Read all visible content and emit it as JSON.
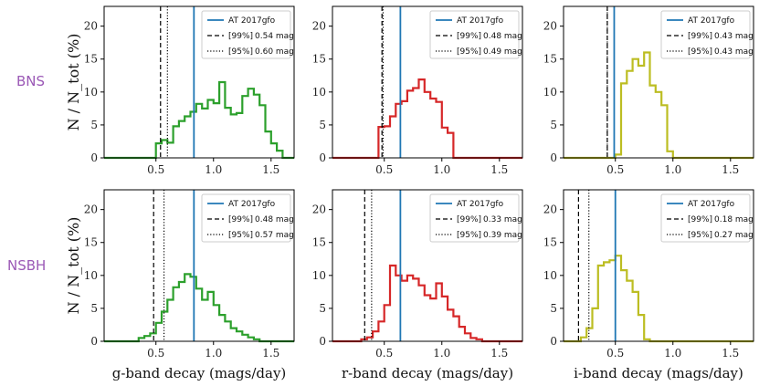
{
  "chart_data": {
    "type": "histogram-grid",
    "row_labels": [
      "BNS",
      "NSBH"
    ],
    "ylabel": "N / N_tot (%)",
    "xlabels": [
      "g-band decay (mags/day)",
      "r-band decay (mags/day)",
      "i-band decay (mags/day)"
    ],
    "xlim": [
      0.05,
      1.7
    ],
    "ylim": [
      0,
      23
    ],
    "xticks": [
      0.5,
      1.0,
      1.5
    ],
    "xtick_labels": [
      "0.5",
      "1.0",
      "1.5"
    ],
    "yticks": [
      0,
      5,
      10,
      15,
      20
    ],
    "ytick_labels": [
      "0",
      "5",
      "10",
      "15",
      "20"
    ],
    "colors": {
      "g": "#2ca02c",
      "r": "#d62728",
      "i": "#bcbd22",
      "obs": "#1f77b4"
    },
    "legend": {
      "observed": "AT 2017gfo",
      "p99_prefix": "[99%]",
      "p95_prefix": "[95%]"
    },
    "panels": [
      {
        "row": "BNS",
        "band": "g",
        "observed": 0.83,
        "p99": 0.54,
        "p95": 0.6,
        "p99_label": "0.54 mag",
        "p95_label": "0.60 mag",
        "bin_start": 0.05,
        "bin_width": 0.05,
        "heights": [
          0,
          0,
          0,
          0,
          0,
          0,
          0,
          0,
          0,
          2.2,
          2.7,
          2.3,
          4.8,
          5.6,
          6.3,
          7.0,
          8.2,
          7.5,
          8.8,
          8.3,
          11.5,
          7.6,
          6.6,
          6.8,
          9.4,
          10.5,
          9.6,
          8.0,
          4.0,
          2.2,
          1.1,
          0,
          0,
          0,
          0
        ]
      },
      {
        "row": "BNS",
        "band": "r",
        "observed": 0.64,
        "p99": 0.48,
        "p95": 0.49,
        "p99_label": "0.48 mag",
        "p95_label": "0.49 mag",
        "bin_start": 0.05,
        "bin_width": 0.05,
        "heights": [
          0,
          0,
          0,
          0,
          0,
          0,
          0,
          0,
          4.7,
          4.8,
          6.3,
          8.2,
          8.6,
          10.2,
          10.6,
          11.9,
          10.0,
          9.0,
          8.5,
          4.6,
          3.8,
          0,
          0,
          0,
          0,
          0,
          0,
          0,
          0,
          0,
          0,
          0,
          0,
          0
        ]
      },
      {
        "row": "BNS",
        "band": "i",
        "observed": 0.49,
        "p99": 0.43,
        "p95": 0.43,
        "p99_label": "0.43 mag",
        "p95_label": "0.43 mag",
        "bin_start": 0.05,
        "bin_width": 0.05,
        "heights": [
          0,
          0,
          0,
          0,
          0,
          0,
          0,
          0,
          0,
          0.5,
          11.3,
          13.2,
          15.0,
          14.0,
          16.0,
          11.0,
          10.0,
          8.0,
          1.0,
          0,
          0,
          0,
          0,
          0,
          0,
          0,
          0,
          0,
          0,
          0,
          0,
          0,
          0
        ]
      },
      {
        "row": "NSBH",
        "band": "g",
        "observed": 0.83,
        "p99": 0.48,
        "p95": 0.57,
        "p99_label": "0.48 mag",
        "p95_label": "0.57 mag",
        "bin_start": 0.05,
        "bin_width": 0.05,
        "heights": [
          0,
          0,
          0,
          0,
          0,
          0,
          0.5,
          0.8,
          1.2,
          2.8,
          4.5,
          6.3,
          8.2,
          9.0,
          10.2,
          9.8,
          8.0,
          6.3,
          7.5,
          5.5,
          4.0,
          3.0,
          2.0,
          1.5,
          1.0,
          0.6,
          0.3,
          0,
          0,
          0,
          0,
          0,
          0,
          0
        ]
      },
      {
        "row": "NSBH",
        "band": "r",
        "observed": 0.64,
        "p99": 0.33,
        "p95": 0.39,
        "p99_label": "0.33 mag",
        "p95_label": "0.39 mag",
        "bin_start": 0.05,
        "bin_width": 0.05,
        "heights": [
          0,
          0,
          0,
          0,
          0,
          0.3,
          0.6,
          1.5,
          3.0,
          5.5,
          11.5,
          10.0,
          9.2,
          10.0,
          9.5,
          8.5,
          7.0,
          6.5,
          8.8,
          6.8,
          4.8,
          3.8,
          2.2,
          1.2,
          0.5,
          0.3,
          0,
          0,
          0,
          0,
          0,
          0,
          0,
          0
        ]
      },
      {
        "row": "NSBH",
        "band": "i",
        "observed": 0.5,
        "p99": 0.18,
        "p95": 0.27,
        "p99_label": "0.18 mag",
        "p95_label": "0.27 mag",
        "bin_start": 0.05,
        "bin_width": 0.05,
        "heights": [
          0,
          0,
          0,
          0.6,
          2.0,
          5.0,
          11.5,
          12.0,
          12.3,
          13.0,
          10.8,
          9.2,
          7.5,
          4.0,
          0.3,
          0,
          0,
          0,
          0,
          0,
          0,
          0,
          0,
          0,
          0,
          0,
          0,
          0,
          0,
          0,
          0,
          0,
          0,
          0
        ]
      }
    ]
  }
}
